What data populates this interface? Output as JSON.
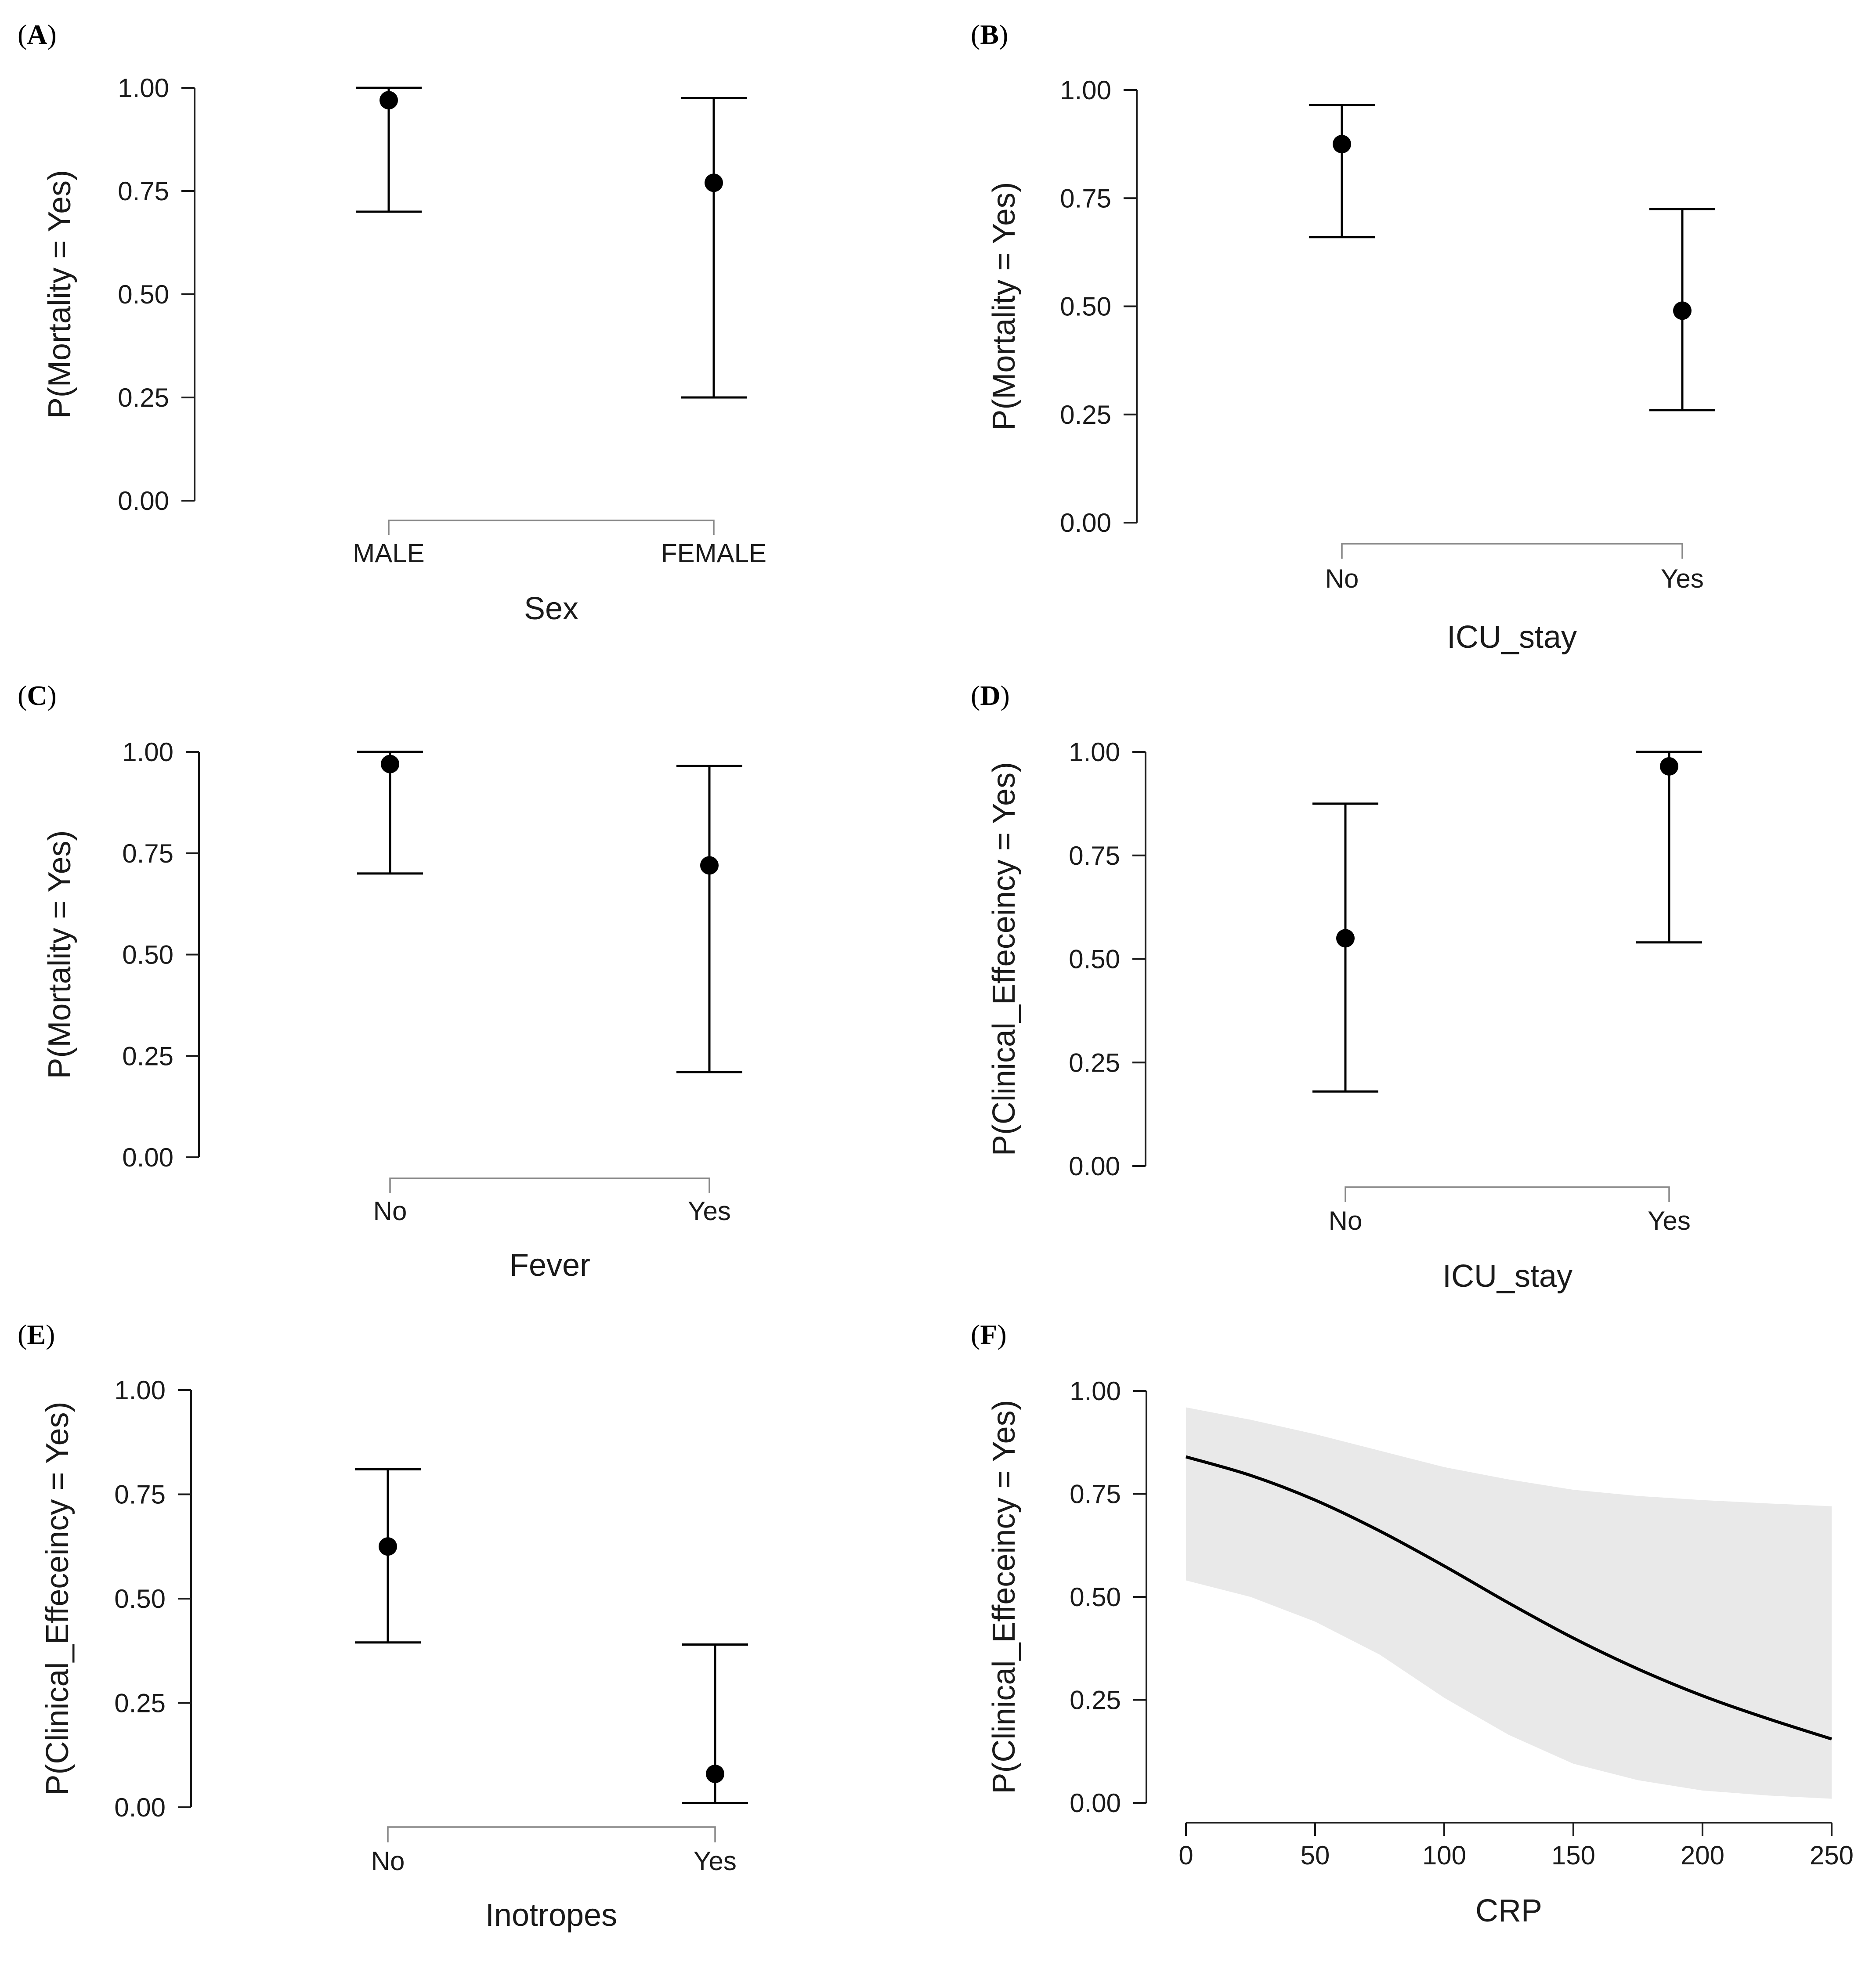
{
  "chart_data": [
    {
      "panel": "A",
      "type": "scatter",
      "ylabel": "P(Mortality = Yes)",
      "xlabel": "Sex",
      "categories": [
        "MALE",
        "FEMALE"
      ],
      "values": [
        0.97,
        0.77
      ],
      "lower": [
        0.7,
        0.25
      ],
      "upper": [
        1.0,
        0.975
      ],
      "ylim": [
        0,
        1
      ],
      "yticks": [
        "0.00",
        "0.25",
        "0.50",
        "0.75",
        "1.00"
      ]
    },
    {
      "panel": "B",
      "type": "scatter",
      "ylabel": "P(Mortality = Yes)",
      "xlabel": "ICU_stay",
      "categories": [
        "No",
        "Yes"
      ],
      "values": [
        0.875,
        0.49
      ],
      "lower": [
        0.66,
        0.26
      ],
      "upper": [
        0.965,
        0.725
      ],
      "ylim": [
        0,
        1
      ],
      "yticks": [
        "0.00",
        "0.25",
        "0.50",
        "0.75",
        "1.00"
      ]
    },
    {
      "panel": "C",
      "type": "scatter",
      "ylabel": "P(Mortality = Yes)",
      "xlabel": "Fever",
      "categories": [
        "No",
        "Yes"
      ],
      "values": [
        0.97,
        0.72
      ],
      "lower": [
        0.7,
        0.21
      ],
      "upper": [
        1.0,
        0.965
      ],
      "ylim": [
        0,
        1
      ],
      "yticks": [
        "0.00",
        "0.25",
        "0.50",
        "0.75",
        "1.00"
      ]
    },
    {
      "panel": "D",
      "type": "scatter",
      "ylabel": "P(Clinical_Effeceincy = Yes)",
      "xlabel": "ICU_stay",
      "categories": [
        "No",
        "Yes"
      ],
      "values": [
        0.55,
        0.965
      ],
      "lower": [
        0.18,
        0.54
      ],
      "upper": [
        0.875,
        1.0
      ],
      "ylim": [
        0,
        1
      ],
      "yticks": [
        "0.00",
        "0.25",
        "0.50",
        "0.75",
        "1.00"
      ]
    },
    {
      "panel": "E",
      "type": "scatter",
      "ylabel": "P(Clinical_Effeceincy = Yes)",
      "xlabel": "Inotropes",
      "categories": [
        "No",
        "Yes"
      ],
      "values": [
        0.625,
        0.08
      ],
      "lower": [
        0.395,
        0.01
      ],
      "upper": [
        0.81,
        0.39
      ],
      "ylim": [
        0,
        1
      ],
      "yticks": [
        "0.00",
        "0.25",
        "0.50",
        "0.75",
        "1.00"
      ]
    },
    {
      "panel": "F",
      "type": "line",
      "ylabel": "P(Clinical_Effeceincy = Yes)",
      "xlabel": "CRP",
      "x": [
        0,
        25,
        50,
        75,
        100,
        125,
        150,
        175,
        200,
        225,
        250
      ],
      "series": [
        {
          "values": [
            0.84,
            0.795,
            0.735,
            0.66,
            0.575,
            0.485,
            0.4,
            0.325,
            0.26,
            0.205,
            0.155
          ]
        }
      ],
      "lower": [
        0.54,
        0.5,
        0.44,
        0.36,
        0.255,
        0.165,
        0.095,
        0.055,
        0.03,
        0.018,
        0.01
      ],
      "upper": [
        0.96,
        0.93,
        0.895,
        0.855,
        0.815,
        0.785,
        0.76,
        0.745,
        0.735,
        0.727,
        0.72
      ],
      "xlim": [
        0,
        250
      ],
      "ylim": [
        0,
        1
      ],
      "xticks": [
        "0",
        "50",
        "100",
        "150",
        "200",
        "250"
      ],
      "yticks": [
        "0.00",
        "0.25",
        "0.50",
        "0.75",
        "1.00"
      ]
    }
  ]
}
